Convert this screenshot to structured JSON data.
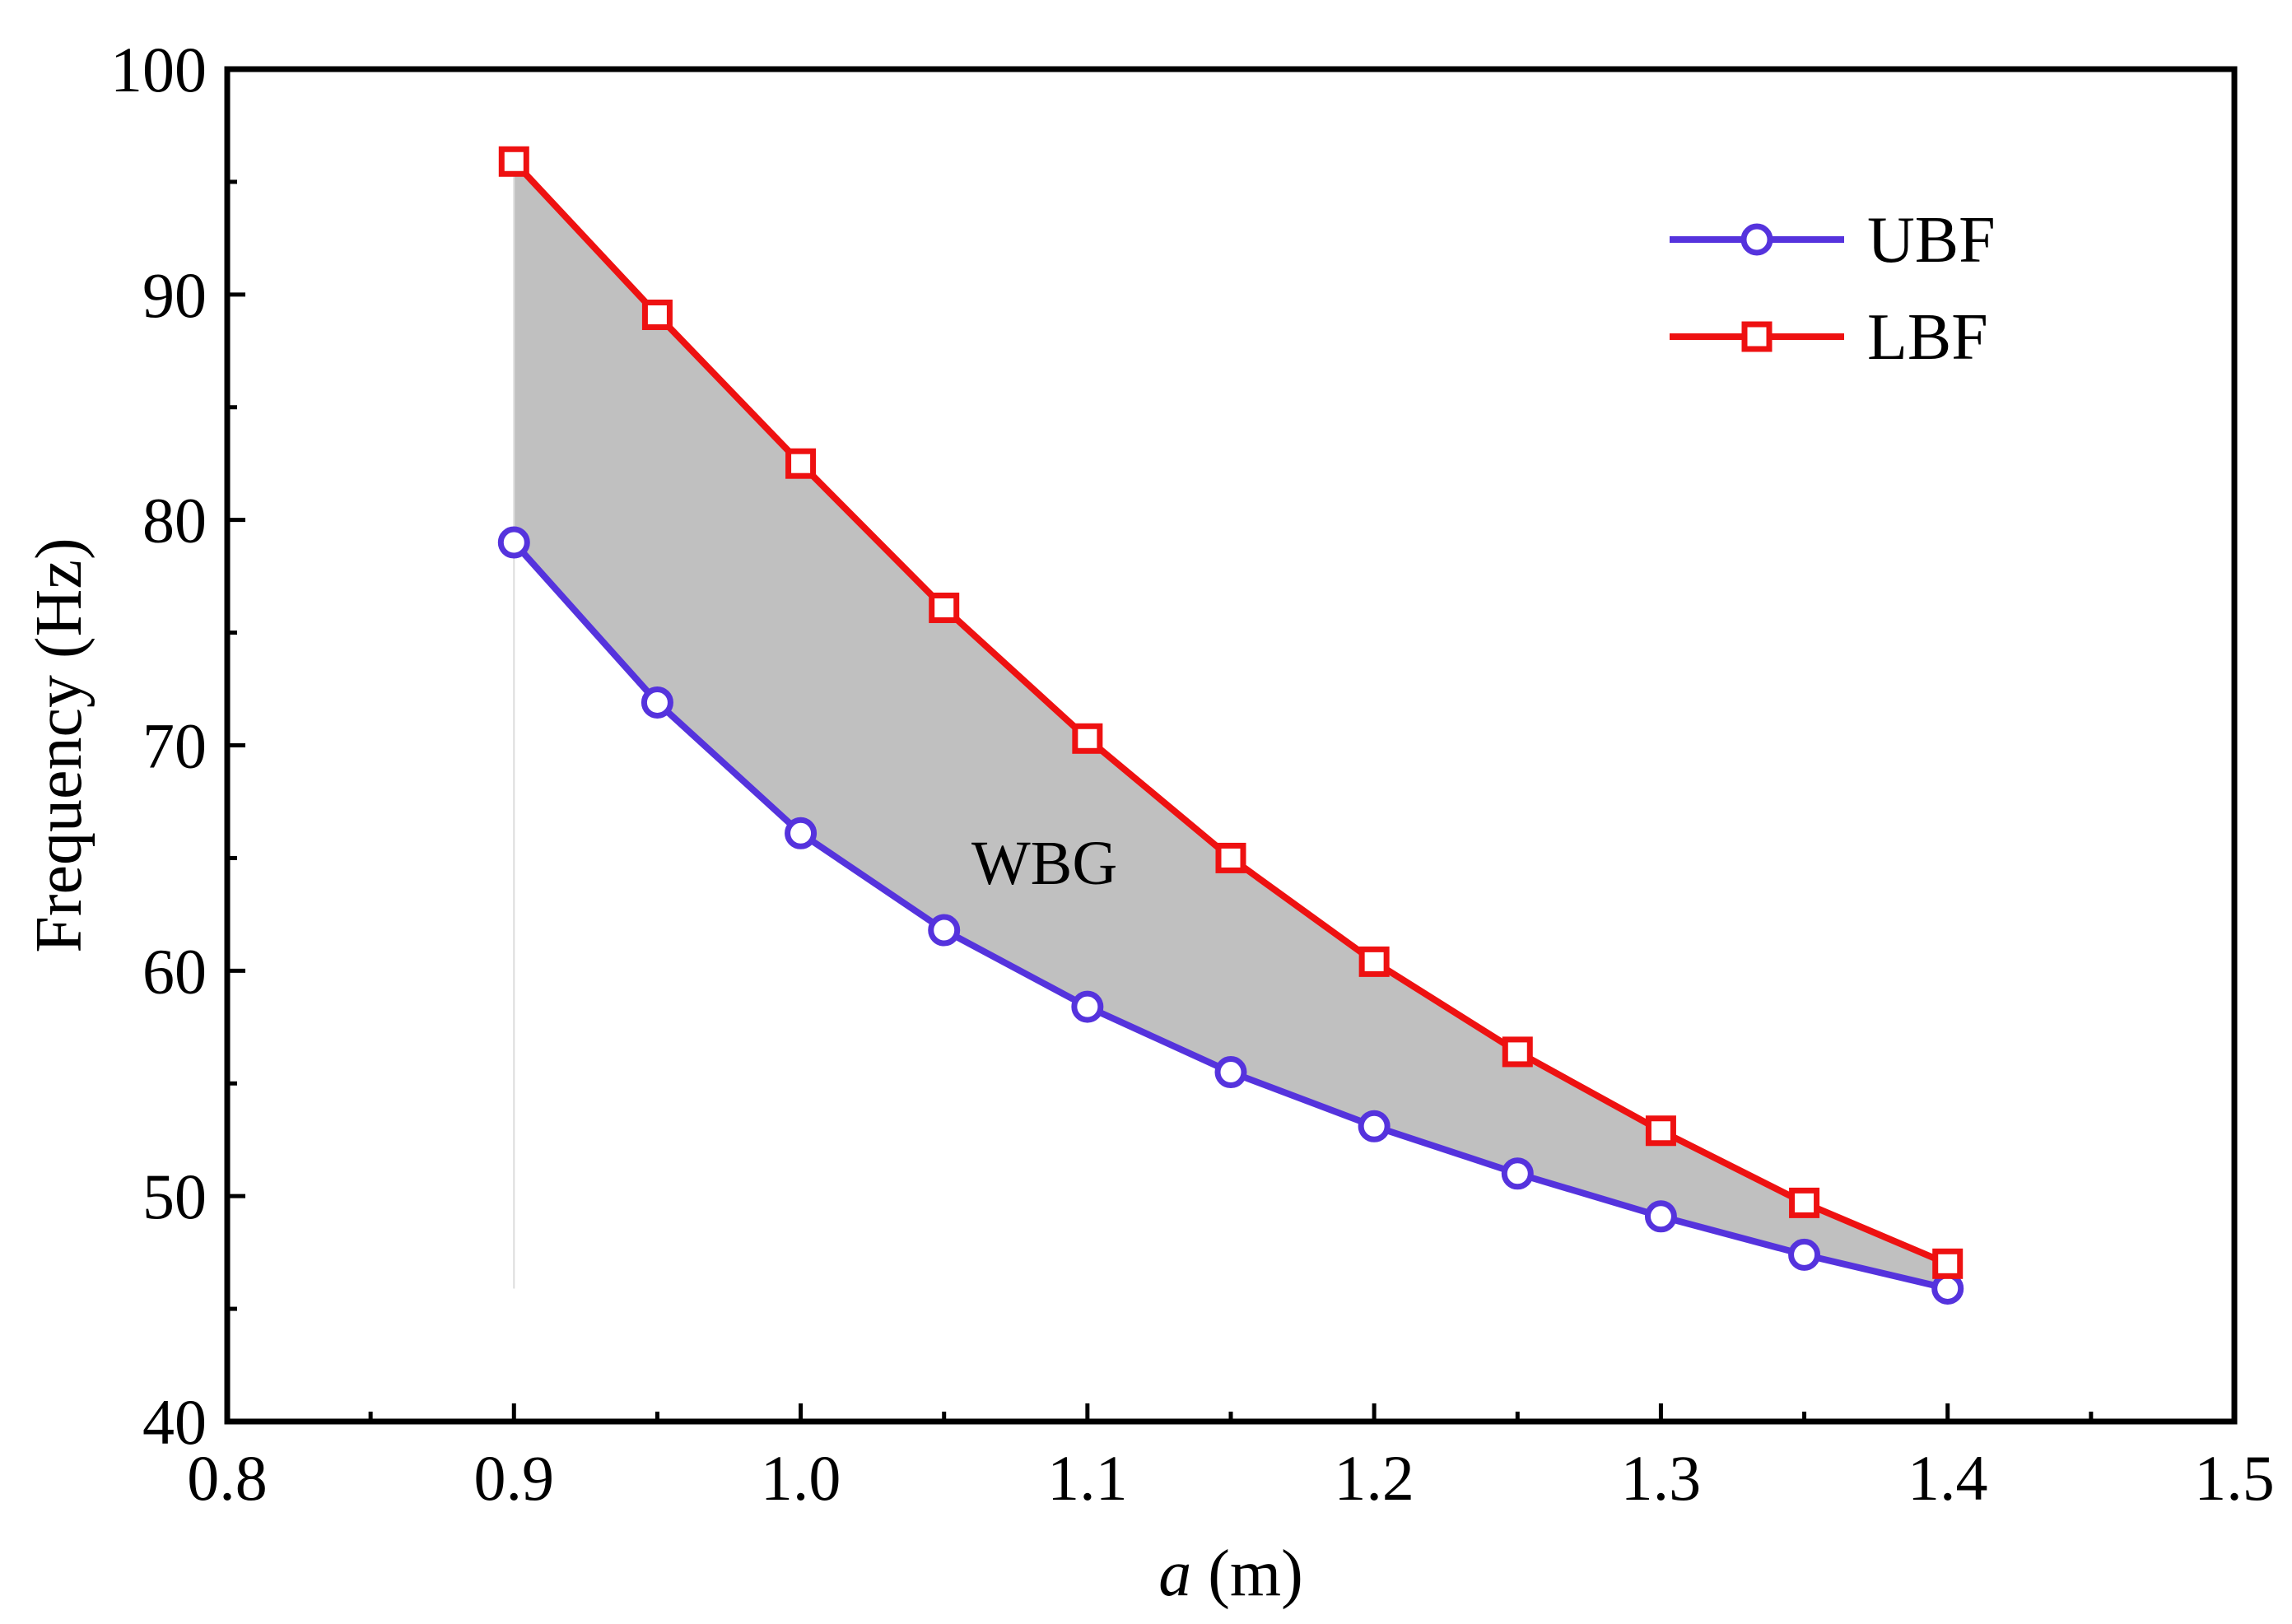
{
  "chart_data": {
    "type": "line",
    "title": "",
    "xlabel_var": "a",
    "xlabel_unit": " (m)",
    "ylabel": "Frequency (Hz)",
    "xlim": [
      0.8,
      1.5
    ],
    "ylim": [
      40,
      100
    ],
    "x_ticks": [
      0.8,
      0.9,
      1.0,
      1.1,
      1.2,
      1.3,
      1.4,
      1.5
    ],
    "x_tick_labels": [
      "0.8",
      "0.9",
      "1.0",
      "1.1",
      "1.2",
      "1.3",
      "1.4",
      "1.5"
    ],
    "y_ticks": [
      40,
      50,
      60,
      70,
      80,
      90,
      100
    ],
    "y_tick_labels": [
      "40",
      "50",
      "60",
      "70",
      "80",
      "90",
      "100"
    ],
    "grid": false,
    "legend_position": "top-right",
    "x": [
      0.9,
      0.95,
      1.0,
      1.05,
      1.1,
      1.15,
      1.2,
      1.25,
      1.3,
      1.35,
      1.4
    ],
    "series": [
      {
        "name": "UBF",
        "color": "#5533dd",
        "marker": "circle",
        "values": [
          79.0,
          71.9,
          66.1,
          61.8,
          58.4,
          55.5,
          53.1,
          51.0,
          49.1,
          47.4,
          45.9
        ]
      },
      {
        "name": "LBF",
        "color": "#ee1111",
        "marker": "square",
        "values": [
          95.9,
          89.1,
          82.5,
          76.1,
          70.3,
          65.0,
          60.4,
          56.4,
          52.9,
          49.7,
          47.0
        ]
      }
    ],
    "band": {
      "label": "WBG",
      "fill": "#c0c0c0",
      "label_x": 1.085,
      "label_y": 64.8
    }
  }
}
